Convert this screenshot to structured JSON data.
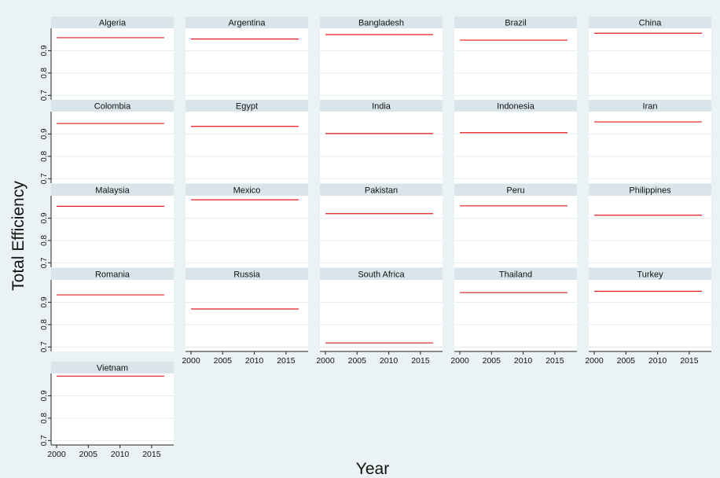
{
  "chart_data": {
    "type": "line",
    "ylabel": "Total Efficiency",
    "xlabel": "Year",
    "xlim": [
      2000,
      2017
    ],
    "ylim": [
      0.68,
      1.0
    ],
    "x_ticks": [
      2000,
      2005,
      2010,
      2015
    ],
    "y_ticks": [
      0.7,
      0.8,
      0.9
    ],
    "y_tick_labels": [
      "0.7",
      "0.8",
      "0.9"
    ],
    "grid": true,
    "line_color": "#e41a1c",
    "panel_header_color": "#d9e5ea",
    "panels": [
      {
        "title": "Algeria",
        "value": 0.958
      },
      {
        "title": "Argentina",
        "value": 0.952
      },
      {
        "title": "Bangladesh",
        "value": 0.972
      },
      {
        "title": "Brazil",
        "value": 0.947
      },
      {
        "title": "China",
        "value": 0.978
      },
      {
        "title": "Colombia",
        "value": 0.947
      },
      {
        "title": "Egypt",
        "value": 0.934
      },
      {
        "title": "India",
        "value": 0.902
      },
      {
        "title": "Indonesia",
        "value": 0.906
      },
      {
        "title": "Iran",
        "value": 0.954
      },
      {
        "title": "Malaysia",
        "value": 0.953
      },
      {
        "title": "Mexico",
        "value": 0.982
      },
      {
        "title": "Pakistan",
        "value": 0.92
      },
      {
        "title": "Peru",
        "value": 0.955
      },
      {
        "title": "Philippines",
        "value": 0.913
      },
      {
        "title": "Romania",
        "value": 0.933
      },
      {
        "title": "Russia",
        "value": 0.87
      },
      {
        "title": "South Africa",
        "value": 0.718
      },
      {
        "title": "Thailand",
        "value": 0.943
      },
      {
        "title": "Turkey",
        "value": 0.949
      },
      {
        "title": "Vietnam",
        "value": 0.988
      }
    ]
  }
}
